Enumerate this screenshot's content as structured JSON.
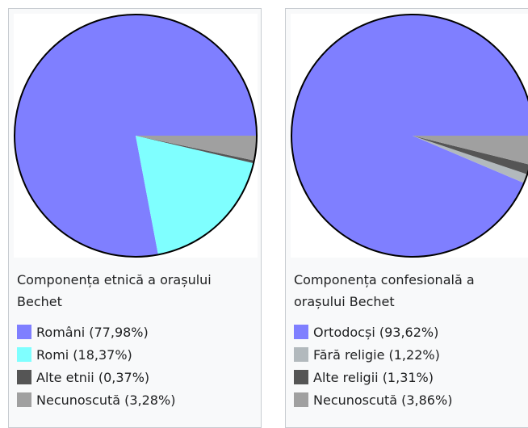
{
  "chart_data": [
    {
      "type": "pie",
      "title": "Componența etnică a orașului Bechet",
      "categories": [
        "Români (77,98%)",
        "Romi (18,37%)",
        "Alte etnii (0,37%)",
        "Necunoscută (3,28%)"
      ],
      "values": [
        77.98,
        18.37,
        0.37,
        3.28
      ],
      "colors": [
        "#7f7fff",
        "#7fffff",
        "#555555",
        "#a0a0a0"
      ]
    },
    {
      "type": "pie",
      "title": "Componența confesională a orașului Bechet",
      "categories": [
        "Ortodocși (93,62%)",
        "Fără religie (1,22%)",
        "Alte religii (1,31%)",
        "Necunoscută (3,86%)"
      ],
      "values": [
        93.62,
        1.22,
        1.31,
        3.86
      ],
      "colors": [
        "#7f7fff",
        "#b2b9bd",
        "#555555",
        "#a0a0a0"
      ]
    }
  ]
}
